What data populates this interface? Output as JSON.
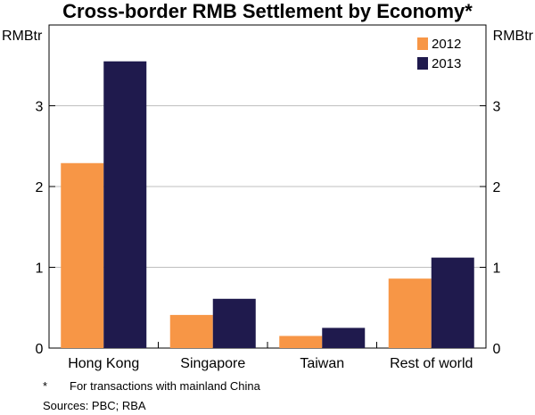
{
  "chart_data": {
    "type": "bar",
    "title": "Cross-border RMB Settlement by Economy*",
    "y_unit_left": "RMBtr",
    "y_unit_right": "RMBtr",
    "categories": [
      "Hong Kong",
      "Singapore",
      "Taiwan",
      "Rest of world"
    ],
    "series": [
      {
        "name": "2012",
        "values": [
          2.29,
          0.41,
          0.15,
          0.86
        ],
        "color": "#f79646"
      },
      {
        "name": "2013",
        "values": [
          3.55,
          0.61,
          0.25,
          1.12
        ],
        "color": "#1f1a4d"
      }
    ],
    "ylim": [
      0,
      4
    ],
    "yticks": [
      0,
      1,
      2,
      3
    ],
    "ytick_labels": [
      "0",
      "1",
      "2",
      "3"
    ],
    "grid": true,
    "legend_position": "top-right",
    "footnote_marker": "*",
    "footnote": "For transactions with mainland China",
    "sources": "Sources:  PBC; RBA"
  }
}
